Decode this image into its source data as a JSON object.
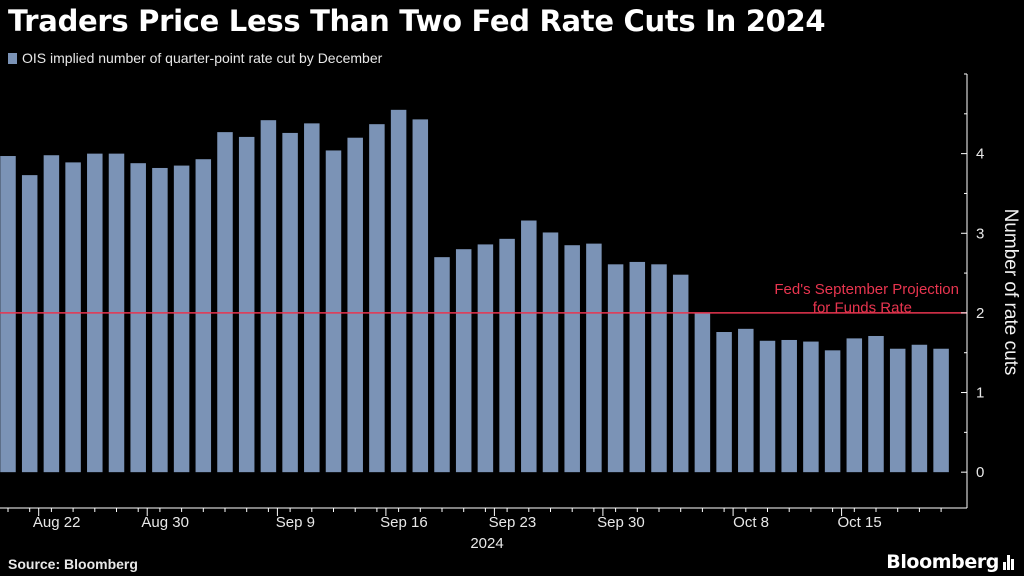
{
  "title": "Traders Price Less Than Two Fed Rate Cuts In 2024",
  "source": "Source: Bloomberg",
  "brand": "Bloomberg",
  "colors": {
    "bar": "#7b93b6",
    "ref_line": "#e8354f",
    "axis": "#ffffff",
    "background": "#000000"
  },
  "chart_data": {
    "type": "bar",
    "title": "Traders Price Less Than Two Fed Rate Cuts In 2024",
    "ylabel": "Number of rate cuts",
    "xlabel": "",
    "ylim": [
      -0.45,
      5
    ],
    "yticks": [
      0,
      1,
      2,
      3,
      4
    ],
    "y_axis_side": "right",
    "grid": false,
    "legend": "top-left",
    "series": [
      {
        "name": "OIS implied number of quarter-point rate cut by December",
        "values": [
          3.97,
          3.73,
          3.98,
          3.89,
          4.0,
          4.0,
          3.88,
          3.82,
          3.85,
          3.93,
          4.27,
          4.21,
          4.42,
          4.26,
          4.38,
          4.04,
          4.2,
          4.37,
          4.55,
          4.43,
          2.7,
          2.8,
          2.86,
          2.93,
          3.16,
          3.01,
          2.85,
          2.87,
          2.61,
          2.64,
          2.61,
          2.48,
          2.0,
          1.76,
          1.8,
          1.65,
          1.66,
          1.64,
          1.53,
          1.68,
          1.71,
          1.55,
          1.6,
          1.55
        ]
      }
    ],
    "x_tick_labels": [
      {
        "label": "Aug 22",
        "bar_index": 1
      },
      {
        "label": "Aug 30",
        "bar_index": 6
      },
      {
        "label": "Sep 9",
        "bar_index": 12
      },
      {
        "label": "Sep 16",
        "bar_index": 17
      },
      {
        "label": "Sep 23",
        "bar_index": 22
      },
      {
        "label": "Sep 30",
        "bar_index": 27
      },
      {
        "label": "Oct 8",
        "bar_index": 33
      },
      {
        "label": "Oct 15",
        "bar_index": 38
      }
    ],
    "x_year_label": "2024",
    "reference_line": {
      "value": 2,
      "label_line1": "Fed's September Projection",
      "label_line2": "for Funds Rate"
    }
  }
}
